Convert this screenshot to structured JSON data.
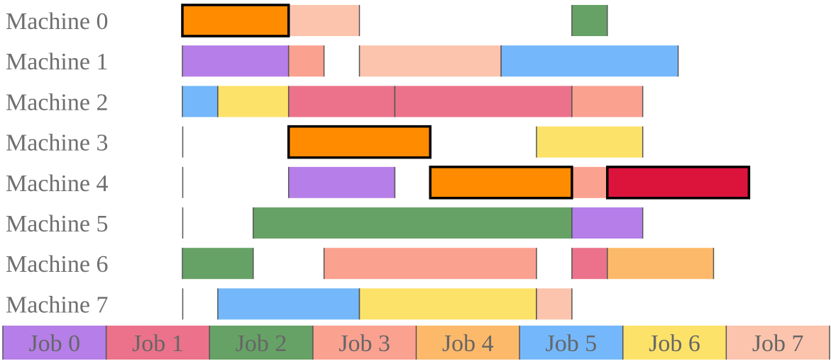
{
  "chart_data": {
    "type": "gantt",
    "x_range": [
      0,
      16
    ],
    "machines": [
      "Machine 0",
      "Machine 1",
      "Machine 2",
      "Machine 3",
      "Machine 4",
      "Machine 5",
      "Machine 6",
      "Machine 7"
    ],
    "jobs": [
      {
        "name": "Job 0",
        "color": "#b57ee8"
      },
      {
        "name": "Job 1",
        "color": "#eb728a"
      },
      {
        "name": "Job 2",
        "color": "#66a266"
      },
      {
        "name": "Job 3",
        "color": "#fba190"
      },
      {
        "name": "Job 4",
        "color": "#fdb96a"
      },
      {
        "name": "Job 5",
        "color": "#74b8fb"
      },
      {
        "name": "Job 6",
        "color": "#fde26a"
      },
      {
        "name": "Job 7",
        "color": "#fcc4ac"
      }
    ],
    "tasks": [
      {
        "machine": 0,
        "job": null,
        "start": 0,
        "end": 3,
        "color": "#ff8c00",
        "highlight": true
      },
      {
        "machine": 0,
        "job": 7,
        "start": 3,
        "end": 5
      },
      {
        "machine": 0,
        "job": 2,
        "start": 11,
        "end": 12
      },
      {
        "machine": 1,
        "job": 0,
        "start": 0,
        "end": 3
      },
      {
        "machine": 1,
        "job": 3,
        "start": 3,
        "end": 4
      },
      {
        "machine": 1,
        "job": 7,
        "start": 5,
        "end": 9
      },
      {
        "machine": 1,
        "job": 5,
        "start": 9,
        "end": 14
      },
      {
        "machine": 2,
        "job": 5,
        "start": 0,
        "end": 1
      },
      {
        "machine": 2,
        "job": 6,
        "start": 1,
        "end": 3
      },
      {
        "machine": 2,
        "job": 1,
        "start": 3,
        "end": 6
      },
      {
        "machine": 2,
        "job": 1,
        "start": 6,
        "end": 11
      },
      {
        "machine": 2,
        "job": 3,
        "start": 11,
        "end": 13
      },
      {
        "machine": 3,
        "job": null,
        "start": 3,
        "end": 7,
        "color": "#ff8c00",
        "highlight": true
      },
      {
        "machine": 3,
        "job": 6,
        "start": 10,
        "end": 13
      },
      {
        "machine": 4,
        "job": 0,
        "start": 3,
        "end": 6
      },
      {
        "machine": 4,
        "job": null,
        "start": 7,
        "end": 11,
        "color": "#ff8c00",
        "highlight": true
      },
      {
        "machine": 4,
        "job": 3,
        "start": 11,
        "end": 12
      },
      {
        "machine": 4,
        "job": null,
        "start": 12,
        "end": 16,
        "color": "#dc143c",
        "highlight": true
      },
      {
        "machine": 5,
        "job": 2,
        "start": 2,
        "end": 11
      },
      {
        "machine": 5,
        "job": 0,
        "start": 11,
        "end": 13
      },
      {
        "machine": 6,
        "job": 2,
        "start": 0,
        "end": 2
      },
      {
        "machine": 6,
        "job": 3,
        "start": 4,
        "end": 10
      },
      {
        "machine": 6,
        "job": 1,
        "start": 11,
        "end": 12
      },
      {
        "machine": 6,
        "job": 4,
        "start": 12,
        "end": 15
      },
      {
        "machine": 7,
        "job": 5,
        "start": 1,
        "end": 5
      },
      {
        "machine": 7,
        "job": 6,
        "start": 5,
        "end": 10
      },
      {
        "machine": 7,
        "job": 7,
        "start": 10,
        "end": 11
      }
    ]
  }
}
